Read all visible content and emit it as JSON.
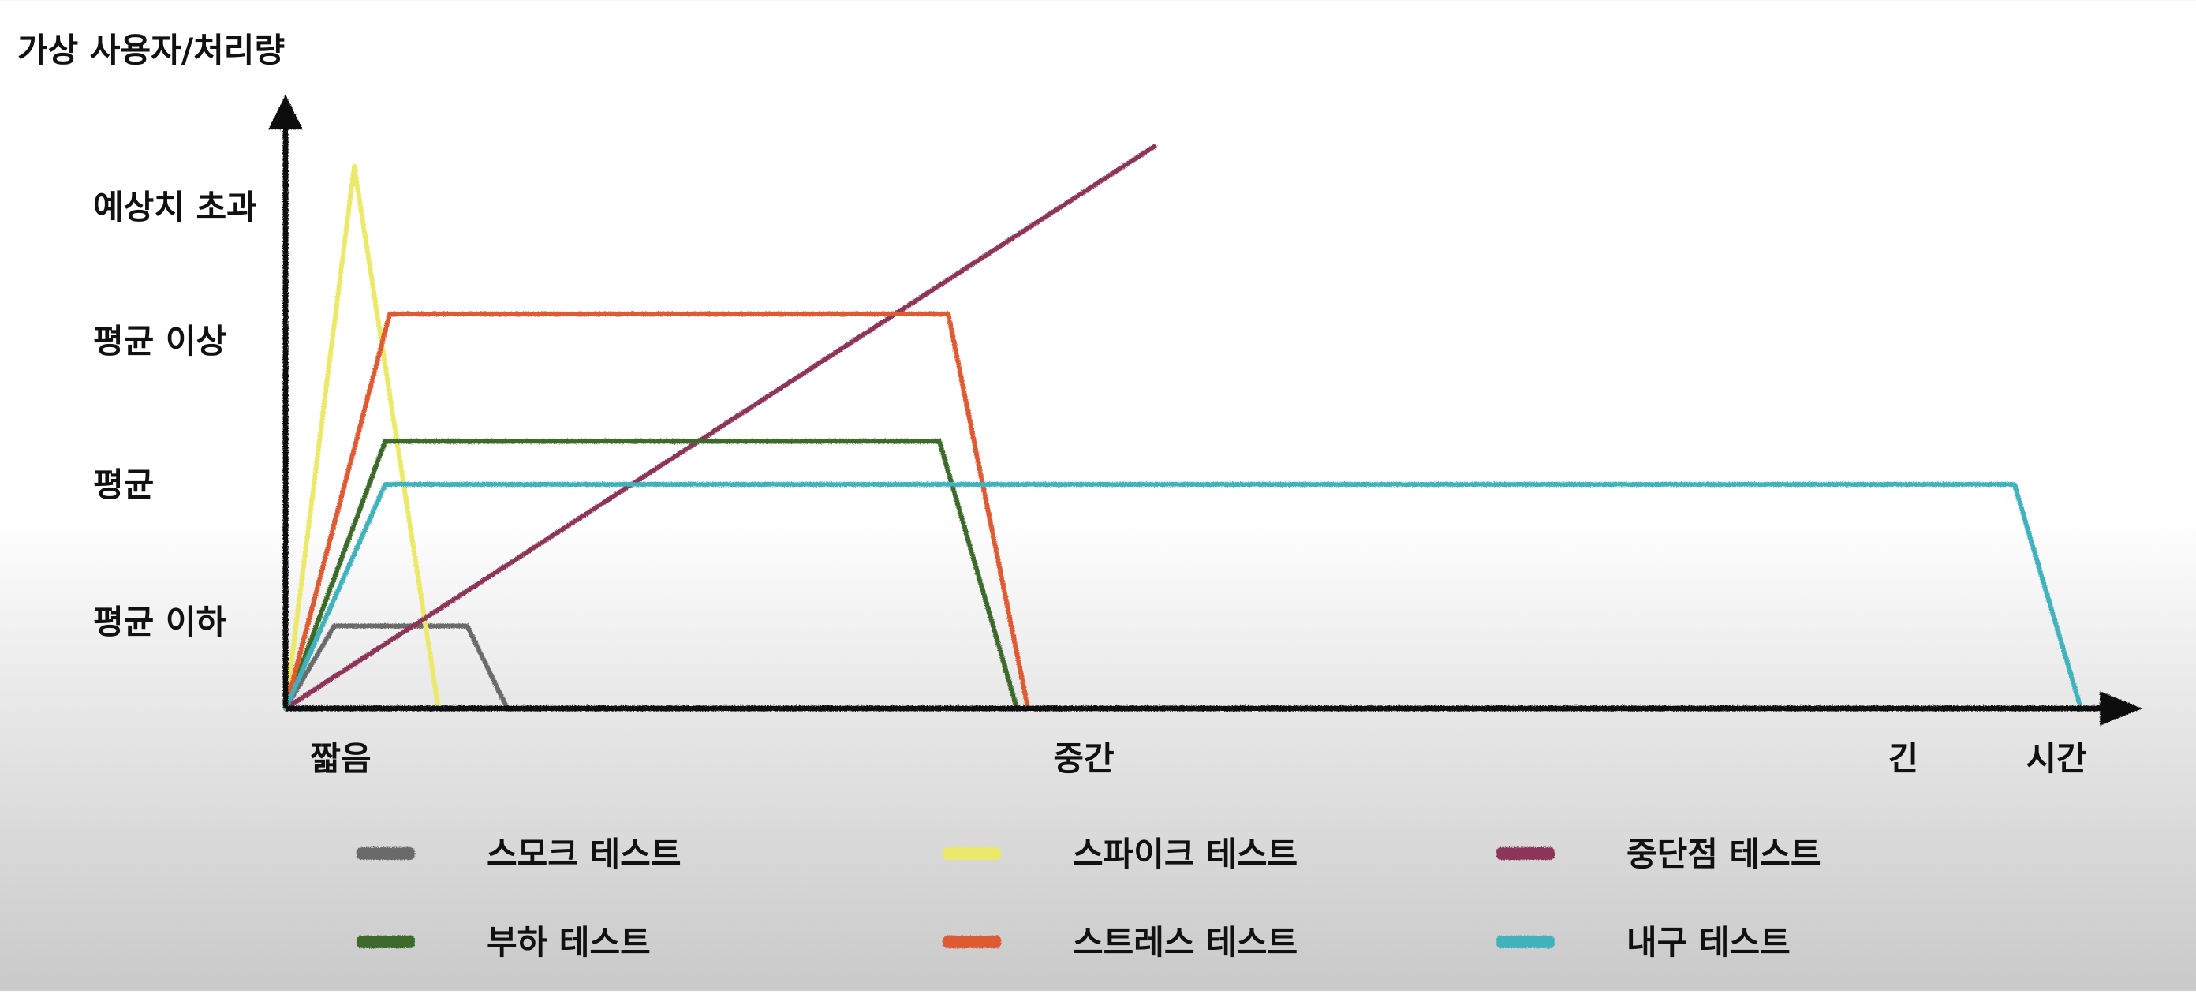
{
  "chart_data": {
    "type": "line",
    "ylabel": "가상 사용자/처리량",
    "xlabel": "시간",
    "y_ticks": [
      "평균 이하",
      "평균",
      "평균 이상",
      "예상치 초과"
    ],
    "x_ticks": [
      "짧음",
      "중간",
      "긴"
    ],
    "y_level_values": [
      1,
      2,
      3,
      4
    ],
    "x_tick_values": [
      0.25,
      3.6,
      7.3
    ],
    "xlim": [
      0,
      8.8
    ],
    "ylim": [
      0,
      4.6
    ],
    "grid": false,
    "legend_position": "bottom",
    "series": [
      {
        "name": "스모크 테스트",
        "color": "#6b6b6b",
        "x": [
          0,
          0.22,
          0.82,
          1.0
        ],
        "y": [
          0,
          0.95,
          0.95,
          0
        ]
      },
      {
        "name": "스파이크 테스트",
        "color": "#ece86a",
        "x": [
          0,
          0.31,
          0.69
        ],
        "y": [
          0,
          4.3,
          0
        ]
      },
      {
        "name": "중단점 테스트",
        "color": "#8c3559",
        "x": [
          0,
          3.92
        ],
        "y": [
          0,
          4.45
        ]
      },
      {
        "name": "부하 테스트",
        "color": "#3a6a2a",
        "x": [
          0,
          0.45,
          2.95,
          3.3
        ],
        "y": [
          0,
          2.3,
          2.3,
          0
        ]
      },
      {
        "name": "스트레스 테스트",
        "color": "#dd5a32",
        "x": [
          0,
          0.47,
          2.99,
          3.35
        ],
        "y": [
          0,
          3.2,
          3.2,
          0
        ]
      },
      {
        "name": "내구 테스트",
        "color": "#3fb2bb",
        "x": [
          0,
          0.45,
          7.8,
          8.1
        ],
        "y": [
          0,
          2.0,
          2.0,
          0
        ]
      }
    ]
  }
}
